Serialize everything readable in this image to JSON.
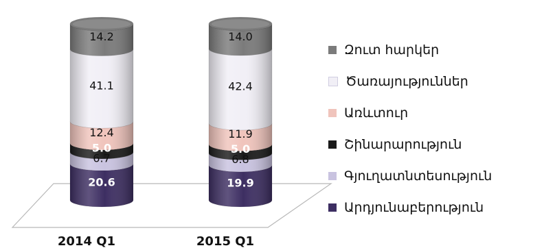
{
  "chart_data": {
    "type": "bar",
    "stacked": true,
    "style": "3d-cylinder",
    "categories": [
      "2014 Q1",
      "2015 Q1"
    ],
    "series": [
      {
        "name": "Արդյունաբերություն",
        "values": [
          20.6,
          19.9
        ],
        "color": "#3d2e62",
        "label_color": "#ffffff"
      },
      {
        "name": "Գյուղատնտեսություն",
        "values": [
          6.7,
          6.8
        ],
        "color": "#c9c3e0",
        "label_color": "#111111"
      },
      {
        "name": "Շինարարություն",
        "values": [
          5.0,
          5.0
        ],
        "color": "#1a1a1a",
        "label_color": "#ffffff"
      },
      {
        "name": "Առևտուր",
        "values": [
          12.4,
          11.9
        ],
        "color": "#f0c4bc",
        "label_color": "#111111"
      },
      {
        "name": "Ծառայություններ",
        "values": [
          41.1,
          42.4
        ],
        "color": "#f1eff6",
        "label_color": "#111111"
      },
      {
        "name": "Զուտ հարկեր",
        "values": [
          14.2,
          14.0
        ],
        "color": "#7b7b7b",
        "label_color": "#111111"
      }
    ],
    "data_labels": [
      [
        "20.6",
        "6.7",
        "5.0",
        "12.4",
        "41.1",
        "14.2"
      ],
      [
        "19.9",
        "6.8",
        "5.0",
        "11.9",
        "42.4",
        "14.0"
      ]
    ],
    "legend_order": [
      5,
      4,
      3,
      2,
      1,
      0
    ],
    "legend_position": "right",
    "ylim": [
      0,
      100
    ],
    "grid": false
  }
}
